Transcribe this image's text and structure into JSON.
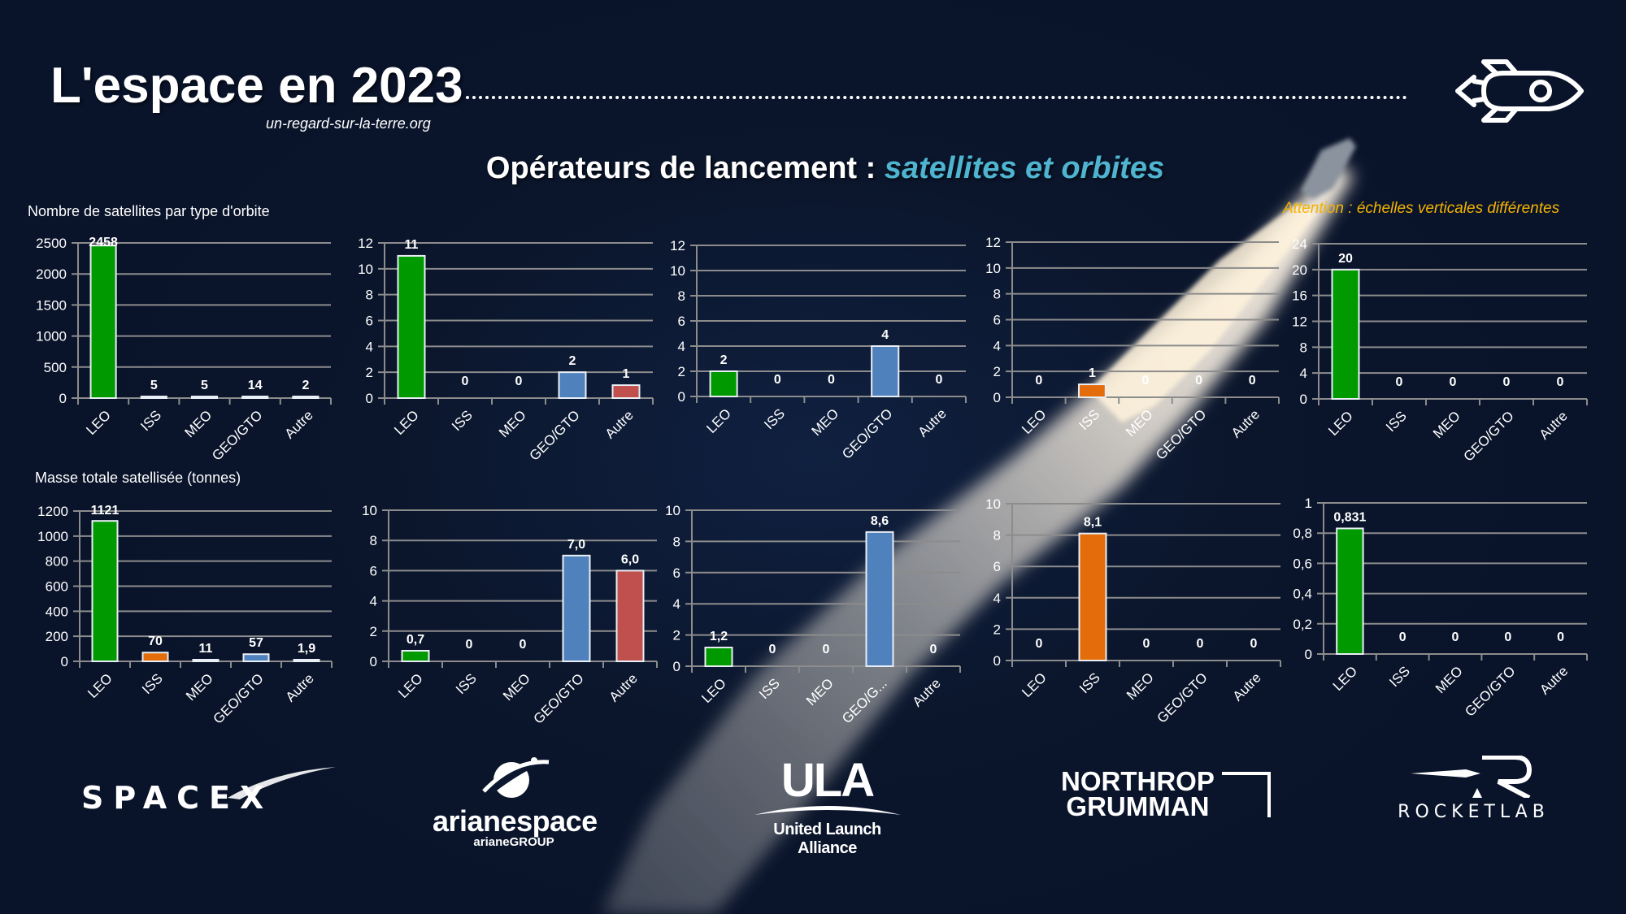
{
  "header": {
    "title": "L'espace en 2023",
    "website": "un-regard-sur-la-terre.org",
    "subtitle_main": "Opérateurs de lancement : ",
    "subtitle_accent": "satellites et orbites",
    "warning": "Attention : échelles verticales différentes",
    "icon": "rocket-icon"
  },
  "row_labels": {
    "satellites": "Nombre de satellites par type d'orbite",
    "mass": "Masse totale satellisée (tonnes)"
  },
  "colors": {
    "background": "#0c1830",
    "LEO": "#009900",
    "ISS": "#e46c0a",
    "MEO": "#9aa7b5",
    "GEO/GTO": "#4f81bd",
    "Autre": "#c0504d",
    "accent": "#4fb4d0",
    "warning": "#f5b400",
    "gridline": "#8c8c8c"
  },
  "operators": [
    {
      "name": "SpaceX",
      "logo_text": "SPACEX"
    },
    {
      "name": "Arianespace",
      "logo_text": "arianespace",
      "logo_subtext": "arianeGROUP"
    },
    {
      "name": "ULA",
      "logo_text": "ULA",
      "logo_subtext": "United Launch Alliance"
    },
    {
      "name": "Northrop Grumman",
      "logo_text": "NORTHROP",
      "logo_text2": "GRUMMAN"
    },
    {
      "name": "Rocket Lab",
      "logo_text": "ROCKETLAB"
    }
  ],
  "chart_data": [
    {
      "type": "bar",
      "title": "Nombre de satellites par type d'orbite",
      "operator": "SpaceX",
      "categories": [
        "LEO",
        "ISS",
        "MEO",
        "GEO/GTO",
        "Autre"
      ],
      "values": [
        2458,
        5,
        5,
        14,
        2
      ],
      "labels": [
        "2458",
        "5",
        "5",
        "14",
        "2"
      ],
      "yticks": [
        "0",
        "500",
        "1000",
        "1500",
        "2000",
        "2500"
      ],
      "ylim": [
        0,
        2500
      ]
    },
    {
      "type": "bar",
      "title": "Nombre de satellites par type d'orbite",
      "operator": "Arianespace",
      "categories": [
        "LEO",
        "ISS",
        "MEO",
        "GEO/GTO",
        "Autre"
      ],
      "values": [
        11,
        0,
        0,
        2,
        1
      ],
      "labels": [
        "11",
        "0",
        "0",
        "2",
        "1"
      ],
      "yticks": [
        "0",
        "2",
        "4",
        "6",
        "8",
        "10",
        "12"
      ],
      "ylim": [
        0,
        12
      ]
    },
    {
      "type": "bar",
      "title": "Nombre de satellites par type d'orbite",
      "operator": "ULA",
      "categories": [
        "LEO",
        "ISS",
        "MEO",
        "GEO/GTO",
        "Autre"
      ],
      "values": [
        2,
        0,
        0,
        4,
        0
      ],
      "labels": [
        "2",
        "0",
        "0",
        "4",
        "0"
      ],
      "yticks": [
        "0",
        "2",
        "4",
        "6",
        "8",
        "10",
        "12"
      ],
      "ylim": [
        0,
        12
      ]
    },
    {
      "type": "bar",
      "title": "Nombre de satellites par type d'orbite",
      "operator": "Northrop Grumman",
      "categories": [
        "LEO",
        "ISS",
        "MEO",
        "GEO/GTO",
        "Autre"
      ],
      "values": [
        0,
        1,
        0,
        0,
        0
      ],
      "labels": [
        "0",
        "1",
        "0",
        "0",
        "0"
      ],
      "yticks": [
        "0",
        "2",
        "4",
        "6",
        "8",
        "10",
        "12"
      ],
      "ylim": [
        0,
        12
      ]
    },
    {
      "type": "bar",
      "title": "Nombre de satellites par type d'orbite",
      "operator": "Rocket Lab",
      "categories": [
        "LEO",
        "ISS",
        "MEO",
        "GEO/GTO",
        "Autre"
      ],
      "values": [
        20,
        0,
        0,
        0,
        0
      ],
      "labels": [
        "20",
        "0",
        "0",
        "0",
        "0"
      ],
      "yticks": [
        "0",
        "4",
        "8",
        "12",
        "16",
        "20",
        "24"
      ],
      "ylim": [
        0,
        24
      ]
    },
    {
      "type": "bar",
      "title": "Masse totale satellisée (tonnes)",
      "operator": "SpaceX",
      "categories": [
        "LEO",
        "ISS",
        "MEO",
        "GEO/GTO",
        "Autre"
      ],
      "values": [
        1121,
        70,
        11,
        57,
        1.9
      ],
      "labels": [
        "1121",
        "70",
        "11",
        "57",
        "1,9"
      ],
      "yticks": [
        "0",
        "200",
        "400",
        "600",
        "800",
        "1000",
        "1200"
      ],
      "ylim": [
        0,
        1200
      ]
    },
    {
      "type": "bar",
      "title": "Masse totale satellisée (tonnes)",
      "operator": "Arianespace",
      "categories": [
        "LEO",
        "ISS",
        "MEO",
        "GEO/GTO",
        "Autre"
      ],
      "values": [
        0.7,
        0,
        0,
        7.0,
        6.0
      ],
      "labels": [
        "0,7",
        "0",
        "0",
        "7,0",
        "6,0"
      ],
      "yticks": [
        "0",
        "2",
        "4",
        "6",
        "8",
        "10"
      ],
      "ylim": [
        0,
        10
      ]
    },
    {
      "type": "bar",
      "title": "Masse totale satellisée (tonnes)",
      "operator": "ULA",
      "categories": [
        "LEO",
        "ISS",
        "MEO",
        "GEO/G...",
        "Autre"
      ],
      "values": [
        1.2,
        0,
        0,
        8.6,
        0
      ],
      "labels": [
        "1,2",
        "0",
        "0",
        "8,6",
        "0"
      ],
      "yticks": [
        "0",
        "2",
        "4",
        "6",
        "8",
        "10"
      ],
      "ylim": [
        0,
        10
      ]
    },
    {
      "type": "bar",
      "title": "Masse totale satellisée (tonnes)",
      "operator": "Northrop Grumman",
      "categories": [
        "LEO",
        "ISS",
        "MEO",
        "GEO/GTO",
        "Autre"
      ],
      "values": [
        0,
        8.1,
        0,
        0,
        0
      ],
      "labels": [
        "0",
        "8,1",
        "0",
        "0",
        "0"
      ],
      "yticks": [
        "0",
        "2",
        "4",
        "6",
        "8",
        "10"
      ],
      "ylim": [
        0,
        10
      ]
    },
    {
      "type": "bar",
      "title": "Masse totale satellisée (tonnes)",
      "operator": "Rocket Lab",
      "categories": [
        "LEO",
        "ISS",
        "MEO",
        "GEO/GTO",
        "Autre"
      ],
      "values": [
        0.831,
        0,
        0,
        0,
        0
      ],
      "labels": [
        "0,831",
        "0",
        "0",
        "0",
        "0"
      ],
      "yticks": [
        "0",
        "0,2",
        "0,4",
        "0,6",
        "0,8",
        "1"
      ],
      "ylim": [
        0,
        1
      ]
    }
  ]
}
